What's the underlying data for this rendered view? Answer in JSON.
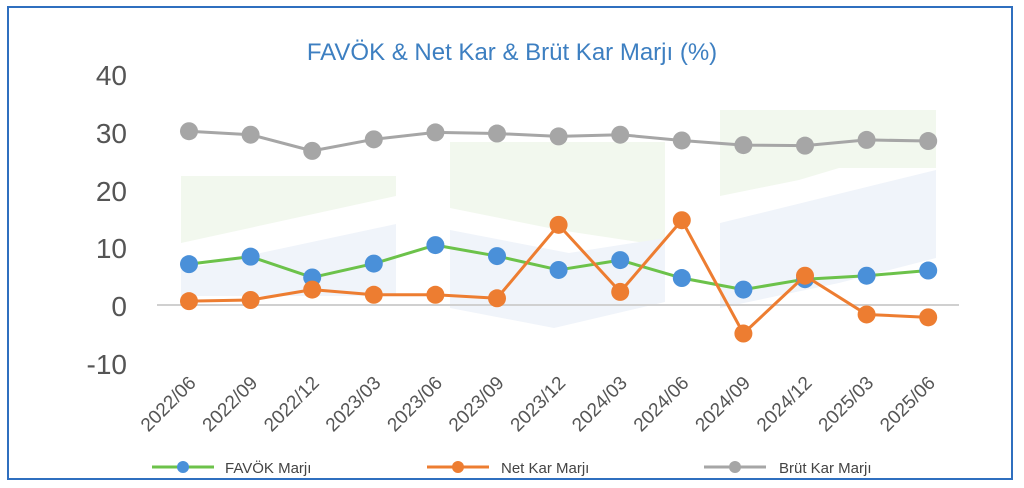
{
  "chart_data": {
    "type": "line",
    "title": "FAVÖK & Net Kar & Brüt Kar Marjı (%)",
    "xlabel": "",
    "ylabel": "",
    "categories": [
      "2022/06",
      "2022/09",
      "2022/12",
      "2023/03",
      "2023/06",
      "2023/09",
      "2023/12",
      "2024/03",
      "2024/06",
      "2024/09",
      "2024/12",
      "2025/03",
      "2025/06"
    ],
    "y_ticks": [
      "40",
      "30",
      "20",
      "10",
      "0",
      "-10"
    ],
    "ylim": [
      -10,
      40
    ],
    "grid": false,
    "legend_position": "bottom",
    "series": [
      {
        "name": "FAVÖK Marjı",
        "values": [
          7.1,
          8.4,
          4.8,
          7.2,
          10.4,
          8.5,
          6.1,
          7.8,
          4.7,
          2.7,
          4.5,
          5.1,
          6.0
        ],
        "line_color": "#6cc24a",
        "marker_color": "#4a90d9"
      },
      {
        "name": "Net Kar Marjı",
        "values": [
          0.7,
          0.9,
          2.7,
          1.8,
          1.8,
          1.2,
          13.9,
          2.3,
          14.7,
          -4.9,
          5.1,
          -1.6,
          -2.1
        ],
        "line_color": "#ed7d31",
        "marker_color": "#ed7d31"
      },
      {
        "name": "Brüt Kar Marjı",
        "values": [
          30.1,
          29.5,
          26.7,
          28.7,
          29.9,
          29.7,
          29.2,
          29.5,
          28.5,
          27.7,
          27.6,
          28.6,
          28.4
        ],
        "line_color": "#a6a6a6",
        "marker_color": "#a6a6a6"
      }
    ]
  }
}
